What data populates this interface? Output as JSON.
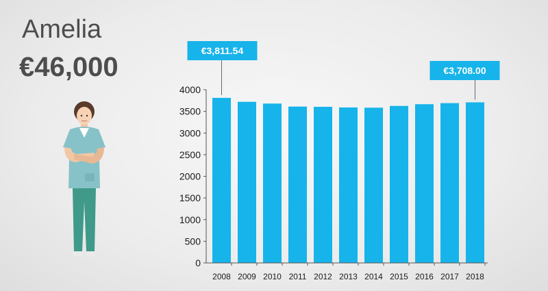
{
  "person": {
    "name": "Amelia",
    "salary": "€46,000"
  },
  "colors": {
    "bar": "#16b4ea",
    "callout": "#16b4ea",
    "axis": "#555555"
  },
  "chart_data": {
    "type": "bar",
    "categories": [
      "2008",
      "2009",
      "2010",
      "2011",
      "2012",
      "2013",
      "2014",
      "2015",
      "2016",
      "2017",
      "2018"
    ],
    "values": [
      3811.54,
      3720,
      3680,
      3610,
      3605,
      3590,
      3585,
      3625,
      3665,
      3690,
      3708.0
    ],
    "ylim": [
      0,
      4000
    ],
    "yticks": [
      0,
      500,
      1000,
      1500,
      2000,
      2500,
      3000,
      3500,
      4000
    ],
    "grid": false,
    "annotations": [
      {
        "category": "2008",
        "text": "€3,811.54"
      },
      {
        "category": "2018",
        "text": "€3,708.00"
      }
    ]
  }
}
